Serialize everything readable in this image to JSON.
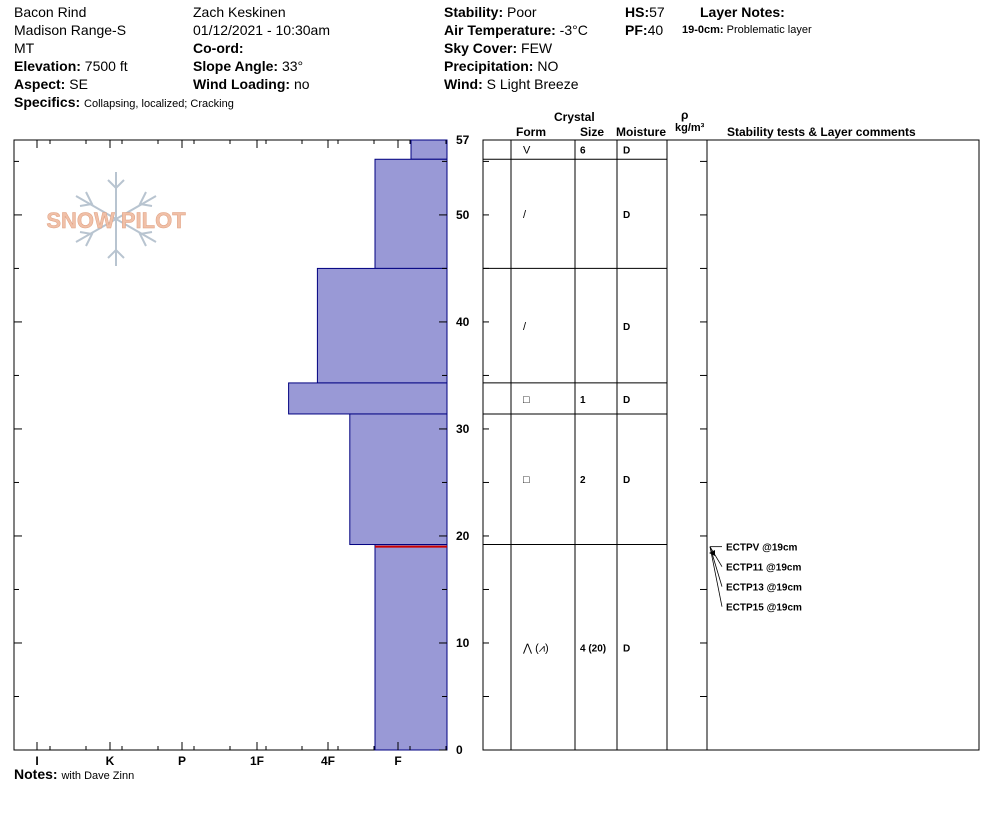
{
  "header": {
    "location": "Bacon Rind",
    "range": "Madison Range-S",
    "state": "MT",
    "elevation": {
      "label": "Elevation:",
      "value": "7500 ft"
    },
    "aspect": {
      "label": "Aspect:",
      "value": "SE"
    },
    "specifics": {
      "label": "Specifics:",
      "value": "Collapsing, localized;  Cracking"
    },
    "observer": "Zach Keskinen",
    "datetime": "01/12/2021 - 10:30am",
    "coord": {
      "label": "Co-ord:",
      "value": ""
    },
    "slope_angle": {
      "label": "Slope Angle:",
      "value": "33°"
    },
    "wind_loading": {
      "label": "Wind Loading:",
      "value": "no"
    },
    "stability": {
      "label": "Stability:",
      "value": "Poor"
    },
    "air_temperature": {
      "label": "Air Temperature:",
      "value": "-3°C"
    },
    "sky_cover": {
      "label": "Sky Cover:",
      "value": "FEW"
    },
    "precipitation": {
      "label": "Precipitation:",
      "value": "NO"
    },
    "wind": {
      "label": "Wind:",
      "value": "S Light Breeze"
    },
    "hs": {
      "label": "HS:",
      "value": "57"
    },
    "pf": {
      "label": "PF:",
      "value": "40"
    },
    "layer_notes": {
      "title": "Layer Notes:",
      "range": "19-0cm:",
      "text": "Problematic layer"
    }
  },
  "columns": {
    "crystal": "Crystal",
    "form": "Form",
    "size": "Size",
    "moisture": "Moisture",
    "rho": "ρ",
    "density_unit": "kg/m³",
    "comments": "Stability tests & Layer comments"
  },
  "logo_text": "SNOW PILOT",
  "hardness_labels": [
    "I",
    "K",
    "P",
    "1F",
    "4F",
    "F"
  ],
  "depth_labels": [
    "0",
    "10",
    "20",
    "30",
    "40",
    "50",
    "57"
  ],
  "chart_data": {
    "type": "bar",
    "orientation": "horizontal",
    "hs_cm": 57,
    "ylim": [
      0,
      57
    ],
    "hardness_scale": [
      "F",
      "4F",
      "1F",
      "P",
      "K",
      "I"
    ],
    "layers": [
      {
        "top": 57,
        "bottom": 55.2,
        "hardness": 0.5
      },
      {
        "top": 55.2,
        "bottom": 45,
        "hardness": 1.0
      },
      {
        "top": 45,
        "bottom": 34.3,
        "hardness": 1.8
      },
      {
        "top": 34.3,
        "bottom": 31.4,
        "hardness": 2.2
      },
      {
        "top": 31.4,
        "bottom": 19.2,
        "hardness": 1.35
      },
      {
        "top": 19.2,
        "bottom": 0,
        "hardness": 1.0
      }
    ],
    "problem_layer_depth": 19
  },
  "layer_table": {
    "boundaries": [
      57,
      55.2,
      45,
      34.3,
      31.4,
      19.2,
      0
    ],
    "rows": [
      {
        "mid": 56.1,
        "form": "V",
        "size": "6",
        "moisture": "D"
      },
      {
        "mid": 50.1,
        "form": "/",
        "size": "",
        "moisture": "D"
      },
      {
        "mid": 39.6,
        "form": "/",
        "size": "",
        "moisture": "D"
      },
      {
        "mid": 32.8,
        "form": "□",
        "size": "1",
        "moisture": "D"
      },
      {
        "mid": 25.3,
        "form": "□",
        "size": "2",
        "moisture": "D"
      },
      {
        "mid": 9.6,
        "form": "⋀ (⩘)",
        "size": "4 (20)",
        "moisture": "D"
      }
    ]
  },
  "stability_tests": [
    {
      "depth": 19,
      "text": "ECTPV @19cm"
    },
    {
      "depth": 19,
      "text": "ECTP11 @19cm"
    },
    {
      "depth": 19,
      "text": "ECTP13 @19cm"
    },
    {
      "depth": 19,
      "text": "ECTP15 @19cm"
    }
  ],
  "notes": {
    "label": "Notes:",
    "value": "with Dave Zinn"
  },
  "colors": {
    "bar_fill": "#9999d6",
    "bar_stroke": "#000080",
    "problem_line": "#cc0000",
    "logo": "#f0c0a8"
  }
}
